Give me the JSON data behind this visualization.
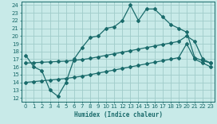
{
  "xlabel": "Humidex (Indice chaleur)",
  "bg_color": "#c8eae8",
  "grid_color": "#a0ccca",
  "line_color": "#1a6b6b",
  "xlim": [
    -0.5,
    23.5
  ],
  "ylim": [
    11.5,
    24.5
  ],
  "xticks": [
    0,
    1,
    2,
    3,
    4,
    5,
    6,
    7,
    8,
    9,
    10,
    11,
    12,
    13,
    14,
    15,
    16,
    17,
    18,
    19,
    20,
    21,
    22,
    23
  ],
  "yticks": [
    12,
    13,
    14,
    15,
    16,
    17,
    18,
    19,
    20,
    21,
    22,
    23,
    24
  ],
  "line1_x": [
    0,
    1,
    2,
    3,
    4,
    5,
    6,
    7,
    8,
    9,
    10,
    11,
    12,
    13,
    14,
    15,
    16,
    17,
    18,
    19,
    20,
    21,
    22,
    23
  ],
  "line1_y": [
    17.5,
    16.0,
    15.5,
    13.0,
    12.2,
    14.0,
    17.0,
    18.5,
    19.8,
    20.0,
    21.0,
    21.2,
    22.0,
    24.0,
    22.0,
    23.5,
    23.5,
    22.5,
    21.5,
    21.0,
    20.5,
    17.2,
    16.8,
    16.5
  ],
  "line2_x": [
    0,
    1,
    2,
    3,
    4,
    5,
    6,
    7,
    8,
    9,
    10,
    11,
    12,
    13,
    14,
    15,
    16,
    17,
    18,
    19,
    20,
    21,
    22,
    23
  ],
  "line2_y": [
    16.5,
    16.55,
    16.6,
    16.65,
    16.7,
    16.75,
    16.85,
    16.95,
    17.1,
    17.3,
    17.5,
    17.7,
    17.9,
    18.1,
    18.3,
    18.5,
    18.7,
    18.9,
    19.1,
    19.3,
    20.0,
    19.3,
    17.0,
    16.5
  ],
  "line3_x": [
    0,
    1,
    2,
    3,
    4,
    5,
    6,
    7,
    8,
    9,
    10,
    11,
    12,
    13,
    14,
    15,
    16,
    17,
    18,
    19,
    20,
    21,
    22,
    23
  ],
  "line3_y": [
    14.0,
    14.1,
    14.2,
    14.3,
    14.4,
    14.5,
    14.65,
    14.8,
    15.0,
    15.2,
    15.4,
    15.6,
    15.8,
    16.0,
    16.2,
    16.4,
    16.6,
    16.8,
    17.0,
    17.2,
    19.0,
    17.0,
    16.5,
    16.0
  ],
  "line_width": 0.9,
  "marker_size": 2.0
}
